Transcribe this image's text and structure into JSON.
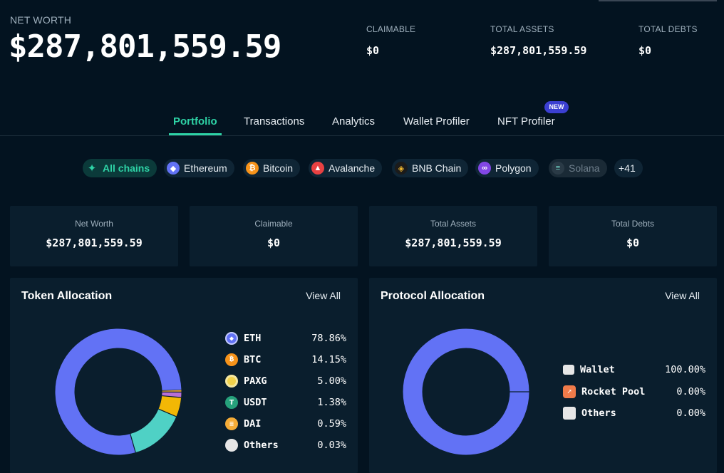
{
  "header": {
    "net_worth_label": "NET WORTH",
    "net_worth_value": "$287,801,559.59",
    "claimable_label": "CLAIMABLE",
    "claimable_value": "$0",
    "total_assets_label": "TOTAL ASSETS",
    "total_assets_value": "$287,801,559.59",
    "total_debts_label": "TOTAL DEBTS",
    "total_debts_value": "$0"
  },
  "tabs": {
    "portfolio": "Portfolio",
    "transactions": "Transactions",
    "analytics": "Analytics",
    "wallet_profiler": "Wallet Profiler",
    "nft_profiler": "NFT Profiler",
    "new_badge": "NEW",
    "active": "Portfolio"
  },
  "chains": {
    "all": "All chains",
    "ethereum": "Ethereum",
    "bitcoin": "Bitcoin",
    "avalanche": "Avalanche",
    "bnb": "BNB Chain",
    "polygon": "Polygon",
    "solana": "Solana",
    "more": "+41"
  },
  "cards": {
    "net_worth_label": "Net Worth",
    "net_worth_value": "$287,801,559.59",
    "claimable_label": "Claimable",
    "claimable_value": "$0",
    "total_assets_label": "Total Assets",
    "total_assets_value": "$287,801,559.59",
    "total_debts_label": "Total Debts",
    "total_debts_value": "$0"
  },
  "token_allocation": {
    "title": "Token Allocation",
    "view_all": "View All",
    "items": [
      {
        "name": "ETH",
        "pct": "78.86%",
        "value": 78.86,
        "color": "#6272f5",
        "icon": "ethereum-icon"
      },
      {
        "name": "BTC",
        "pct": "14.15%",
        "value": 14.15,
        "color": "#4fd1c5",
        "icon": "bitcoin-icon"
      },
      {
        "name": "PAXG",
        "pct": "5.00%",
        "value": 5.0,
        "color": "#f2b705",
        "icon": "paxg-icon"
      },
      {
        "name": "USDT",
        "pct": "1.38%",
        "value": 1.38,
        "color": "#b66fd6",
        "icon": "tether-icon"
      },
      {
        "name": "DAI",
        "pct": "0.59%",
        "value": 0.59,
        "color": "#f5ac37",
        "icon": "dai-icon"
      },
      {
        "name": "Others",
        "pct": "0.03%",
        "value": 0.03,
        "color": "#e6e6e6",
        "icon": "others-icon"
      }
    ]
  },
  "protocol_allocation": {
    "title": "Protocol Allocation",
    "view_all": "View All",
    "items": [
      {
        "name": "Wallet",
        "pct": "100.00%",
        "value": 100.0,
        "color": "#6272f5",
        "icon": "wallet-icon"
      },
      {
        "name": "Rocket Pool",
        "pct": "0.00%",
        "value": 0.0,
        "color": "#f07b4a",
        "icon": "rocket-pool-icon"
      },
      {
        "name": "Others",
        "pct": "0.00%",
        "value": 0.0,
        "color": "#e6e6e6",
        "icon": "others-icon"
      }
    ]
  },
  "colors": {
    "accent": "#2ed3a6",
    "background": "#031320",
    "card": "#0a1e2d"
  }
}
